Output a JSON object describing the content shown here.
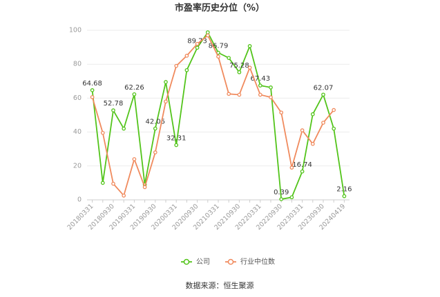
{
  "chart_data": {
    "type": "line",
    "title": "市盈率历史分位（%）",
    "source": "数据来源：恒生聚源",
    "categories": [
      "20180331",
      null,
      "20180930",
      null,
      "20190331",
      null,
      "20190930",
      null,
      "20200331",
      null,
      "20200930",
      null,
      "20210331",
      null,
      "20210930",
      null,
      "20220331",
      null,
      "20220930",
      null,
      "20230331",
      null,
      "20230930",
      null,
      "20240419"
    ],
    "series": [
      {
        "name": "公司",
        "color": "#52c41a",
        "values": [
          64.68,
          10,
          52.78,
          42,
          62.26,
          9,
          42.05,
          69.5,
          32.31,
          76.5,
          89.73,
          98.8,
          86.79,
          83.7,
          75.28,
          90.7,
          67.43,
          66.3,
          0.39,
          1.5,
          16.74,
          50.5,
          62.07,
          42,
          2.16
        ],
        "value_labels": [
          "64.68",
          null,
          "52.78",
          null,
          "62.26",
          null,
          "42.05",
          null,
          "32.31",
          null,
          "89.73",
          null,
          "86.79",
          null,
          "75.28",
          null,
          "67.43",
          null,
          "0.39",
          null,
          "16.74",
          null,
          "62.07",
          null,
          "2.16"
        ]
      },
      {
        "name": "行业中位数",
        "color": "#f08a5d",
        "values": [
          60.6,
          39.5,
          9.5,
          2.5,
          24,
          7.5,
          28,
          58,
          79,
          85,
          92,
          97,
          84.5,
          62.5,
          62,
          78,
          62,
          60.5,
          51.5,
          19,
          41,
          33,
          45.5,
          53,
          null
        ]
      }
    ],
    "ylim": [
      0,
      100
    ],
    "yticks": [
      0,
      20,
      40,
      60,
      80,
      100
    ],
    "grid": true,
    "legend": "bottom"
  }
}
